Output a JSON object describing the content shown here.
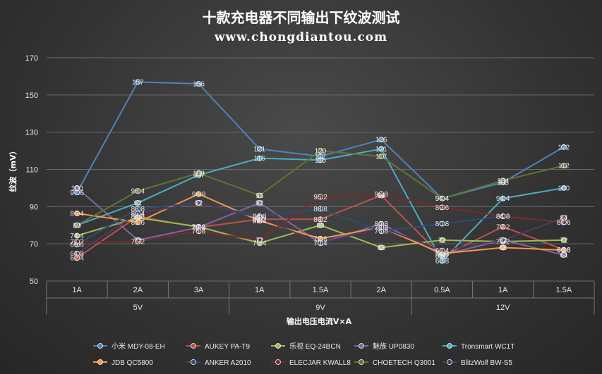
{
  "chart_data": {
    "type": "line",
    "title": "十款充电器不同输出下纹波测试",
    "subtitle": "www.chongdiantou.com",
    "ylabel": "纹波（mV）",
    "xlabel": "输出电压电流V×A",
    "ylim": [
      50,
      170
    ],
    "yticks": [
      50,
      70,
      90,
      110,
      130,
      150,
      170
    ],
    "categories": [
      "1A",
      "2A",
      "3A",
      "1A",
      "1.5A",
      "2A",
      "0.5A",
      "1A",
      "1.5A"
    ],
    "groups": [
      {
        "label": "5V",
        "span": [
          0,
          2
        ]
      },
      {
        "label": "9V",
        "span": [
          3,
          5
        ]
      },
      {
        "label": "12V",
        "span": [
          6,
          8
        ]
      }
    ],
    "grid": true,
    "legend": "bottom",
    "series": [
      {
        "name": "小米 MDY-08-EH",
        "color": "#4f81bd",
        "values": [
          97.6,
          157,
          156,
          121,
          117,
          126,
          94.4,
          103,
          122
        ]
      },
      {
        "name": "AUKEY PA-T9",
        "color": "#c0504d",
        "values": [
          62.4,
          84.8,
          78.8,
          83.2,
          83.2,
          96,
          63.2,
          79.2,
          66.8
        ]
      },
      {
        "name": "乐视 EQ-24BCN",
        "color": "#9bbb59",
        "values": [
          74.4,
          84,
          79.2,
          70.4,
          80,
          68,
          72,
          71.2,
          72
        ]
      },
      {
        "name": "魅族 UP0830",
        "color": "#8064a2",
        "values": [
          100,
          72,
          78.8,
          92,
          70.4,
          80.8,
          64,
          72,
          64
        ]
      },
      {
        "name": "Tronsmart WC1T",
        "color": "#4bacc6",
        "values": [
          80,
          92,
          107,
          116,
          115,
          121,
          60.8,
          94.4,
          100
        ]
      },
      {
        "name": "JDB QC5800",
        "color": "#f79646",
        "values": [
          86.4,
          81.6,
          96.8,
          82.4,
          72.8,
          78.8,
          64.8,
          68,
          66.6
        ]
      },
      {
        "name": "ANKER A2010",
        "color": "#2c4d75",
        "values": [
          69.6,
          88.8,
          92,
          84.8,
          88.8,
          76.8,
          80.8,
          84.8,
          81.6
        ]
      },
      {
        "name": "ELECJAR KWALL8",
        "color": "#772c2a",
        "values": [
          71.2,
          71.2,
          76.8,
          72,
          95.2,
          96.8,
          89.6,
          84.8,
          81.6
        ]
      },
      {
        "name": "CHOETECH Q3001",
        "color": "#5f7530",
        "values": [
          80,
          98.4,
          108,
          96,
          120,
          117,
          94.4,
          104,
          112
        ]
      },
      {
        "name": "BlitzWolf BW-S5",
        "color": "#4d3b62",
        "values": [
          64.8,
          86.4,
          92,
          84,
          70.4,
          78.8,
          66.4,
          72,
          84
        ]
      }
    ]
  }
}
